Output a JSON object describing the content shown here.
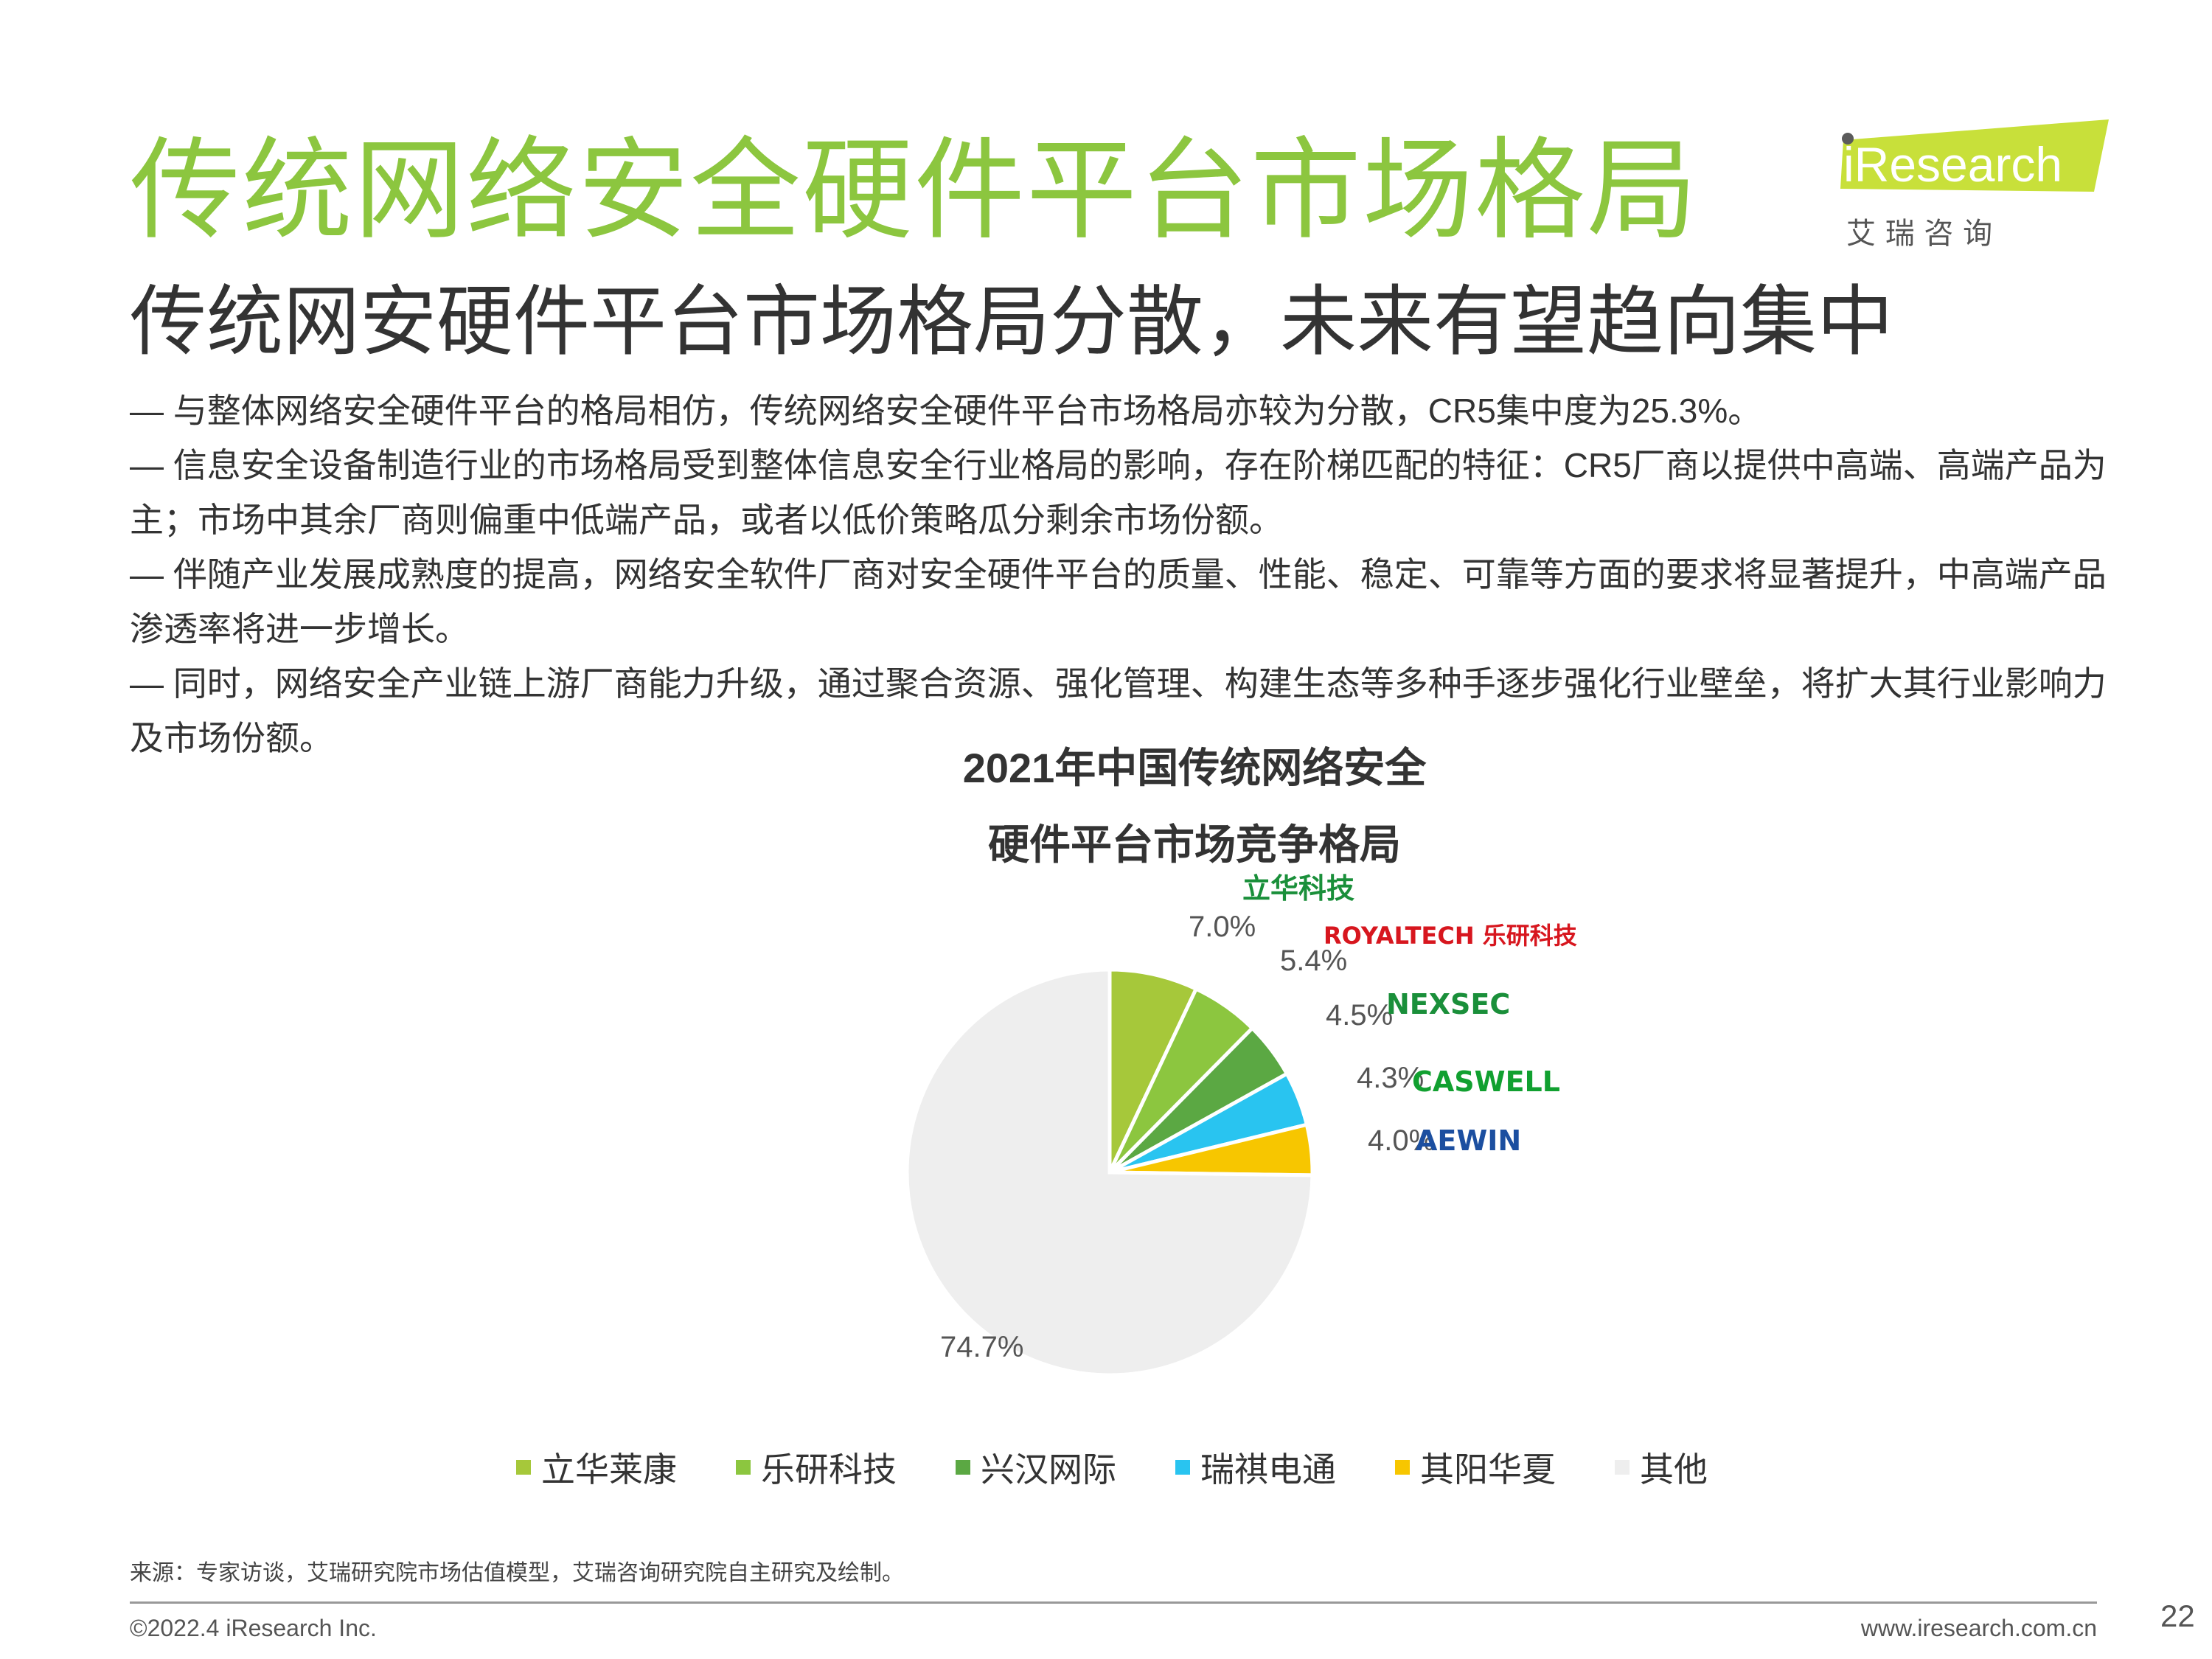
{
  "header": {
    "title": "传统网络安全硬件平台市场格局",
    "subtitle": "传统网安硬件平台市场格局分散，未来有望趋向集中",
    "logo_text": "iResearch",
    "logo_cn": "艾 瑞 咨 询"
  },
  "bullets": [
    "— 与整体网络安全硬件平台的格局相仿，传统网络安全硬件平台市场格局亦较为分散，CR5集中度为25.3%。",
    "— 信息安全设备制造行业的市场格局受到整体信息安全行业格局的影响，存在阶梯匹配的特征：CR5厂商以提供中高端、高端产品为主；市场中其余厂商则偏重中低端产品，或者以低价策略瓜分剩余市场份额。",
    "— 伴随产业发展成熟度的提高，网络安全软件厂商对安全硬件平台的质量、性能、稳定、可靠等方面的要求将显著提升，中高端产品渗透率将进一步增长。",
    "— 同时，网络安全产业链上游厂商能力升级，通过聚合资源、强化管理、构建生态等多种手逐步强化行业壁垒，将扩大其行业影响力及市场份额。"
  ],
  "chart_data": {
    "type": "pie",
    "title_line1": "2021年中国传统网络安全",
    "title_line2": "硬件平台市场竞争格局",
    "slices": [
      {
        "name": "立华莱康",
        "value": 7.0,
        "label": "7.0%",
        "color": "#a6c83a",
        "logo": "立华科技"
      },
      {
        "name": "乐研科技",
        "value": 5.4,
        "label": "5.4%",
        "color": "#8cc63f",
        "logo": "ROYALTECH 乐研科技"
      },
      {
        "name": "兴汉网际",
        "value": 4.5,
        "label": "4.5%",
        "color": "#5ba843",
        "logo": "NEXSEC"
      },
      {
        "name": "瑞祺电通",
        "value": 4.3,
        "label": "4.3%",
        "color": "#29c4f0",
        "logo": "CASWELL"
      },
      {
        "name": "其阳华夏",
        "value": 4.0,
        "label": "4.0%",
        "color": "#f7c600",
        "logo": "AEWIN"
      },
      {
        "name": "其他",
        "value": 74.7,
        "label": "74.7%",
        "color": "#eeeeee",
        "logo": ""
      }
    ]
  },
  "footer": {
    "source": "来源：专家访谈，艾瑞研究院市场估值模型，艾瑞咨询研究院自主研究及绘制。",
    "copyright": "©2022.4 iResearch Inc.",
    "website": "www.iresearch.com.cn",
    "page": "22"
  }
}
